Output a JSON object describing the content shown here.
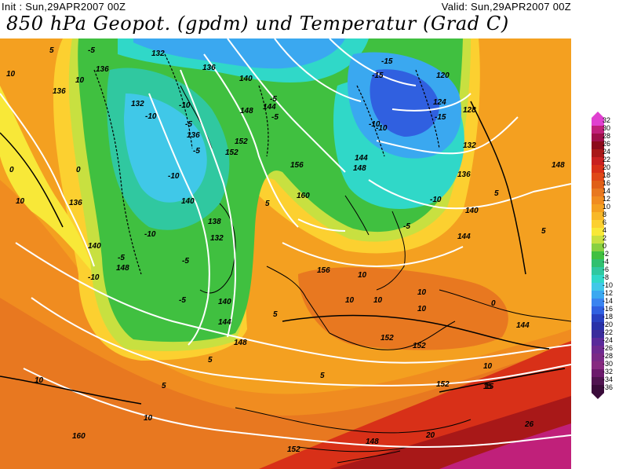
{
  "header": {
    "init_label": "Init : Sun,29APR2007 00Z",
    "valid_label": "Valid: Sun,29APR2007 00Z",
    "title": "850 hPa Geopot. (gpdm) und Temperatur (Grad C)"
  },
  "colorbar": {
    "ticks": [
      "32",
      "30",
      "28",
      "26",
      "24",
      "22",
      "20",
      "18",
      "16",
      "14",
      "12",
      "10",
      "8",
      "6",
      "4",
      "2",
      "0",
      "-2",
      "-4",
      "-6",
      "-8",
      "-10",
      "-12",
      "-14",
      "-16",
      "-18",
      "-20",
      "-22",
      "-24",
      "-26",
      "-28",
      "-30",
      "-32",
      "-34",
      "-36"
    ],
    "colors": [
      "#e040d0",
      "#c0207a",
      "#a0104a",
      "#8c0a1a",
      "#a81818",
      "#c82020",
      "#d83018",
      "#e04818",
      "#e06018",
      "#e87820",
      "#f08c20",
      "#f4a020",
      "#f8b828",
      "#fcd030",
      "#f8e838",
      "#c8e040",
      "#88d040",
      "#40c040",
      "#30c070",
      "#30c8a0",
      "#30d8c8",
      "#40c8e8",
      "#3aa8f0",
      "#3a84f0",
      "#3060e0",
      "#2840c0",
      "#2830a8",
      "#3a2c9c",
      "#5a2a9a",
      "#6e2a90",
      "#7a2a86",
      "#862a80",
      "#6c1a6c",
      "#501450",
      "#3a0c3a"
    ]
  },
  "map": {
    "geopotential_labels": [
      "132",
      "136",
      "136",
      "136",
      "140",
      "144",
      "148",
      "152",
      "152",
      "136",
      "138",
      "132",
      "140",
      "140",
      "144",
      "148",
      "148",
      "156",
      "160",
      "144",
      "148",
      "144",
      "140",
      "136",
      "132",
      "128",
      "124",
      "120",
      "148",
      "156",
      "152",
      "152",
      "152",
      "144",
      "152",
      "148",
      "160",
      "140",
      "132",
      "136"
    ],
    "temperature_labels": [
      "-5",
      "10",
      "10",
      "-10",
      "-10",
      "-5",
      "-5",
      "-10",
      "0",
      "5",
      "10",
      "-10",
      "-5",
      "-5",
      "0",
      "-5",
      "-5",
      "-10",
      "-15",
      "-15",
      "-15",
      "-10",
      "-5",
      "5",
      "-10",
      "-5",
      "10",
      "10",
      "10",
      "10",
      "10",
      "5",
      "5",
      "5",
      "10",
      "10",
      "20",
      "15",
      "26",
      "5",
      "-10",
      "5",
      "0",
      "10",
      "15",
      "5"
    ]
  }
}
